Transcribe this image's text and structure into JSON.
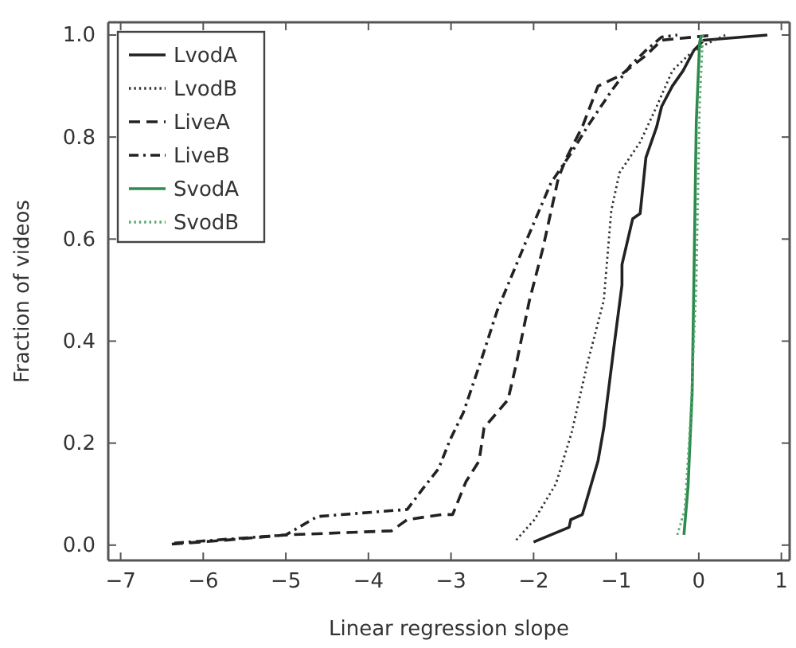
{
  "chart_data": {
    "type": "line",
    "xlabel": "Linear regression slope",
    "ylabel": "Fraction of videos",
    "xlim": [
      -7.15,
      1.1
    ],
    "ylim": [
      -0.03,
      1.025
    ],
    "xticks": [
      {
        "value": -7,
        "label": "−7"
      },
      {
        "value": -6,
        "label": "−6"
      },
      {
        "value": -5,
        "label": "−5"
      },
      {
        "value": -4,
        "label": "−4"
      },
      {
        "value": -3,
        "label": "−3"
      },
      {
        "value": -2,
        "label": "−2"
      },
      {
        "value": -1,
        "label": "−1"
      },
      0,
      1
    ],
    "yticks": [
      {
        "value": 0,
        "label": "0.0"
      },
      {
        "value": 0.2,
        "label": "0.2"
      },
      {
        "value": 0.4,
        "label": "0.4"
      },
      {
        "value": 0.6,
        "label": "0.6"
      },
      {
        "value": 0.8,
        "label": "0.8"
      },
      {
        "value": 1,
        "label": "1.0"
      }
    ],
    "grid": false,
    "legend": "top left",
    "marker": "none",
    "series": [
      {
        "name": "LvodA",
        "color": "#222222",
        "line_style": "solid",
        "x": [
          -2.0,
          -1.57,
          -1.55,
          -1.41,
          -1.36,
          -1.22,
          -1.15,
          -1.03,
          -0.93,
          -0.93,
          -0.8,
          -0.71,
          -0.64,
          -0.51,
          -0.45,
          -0.32,
          -0.19,
          -0.06,
          0.06,
          0.83
        ],
        "values": [
          0.006,
          0.035,
          0.05,
          0.06,
          0.087,
          0.165,
          0.23,
          0.385,
          0.51,
          0.55,
          0.64,
          0.65,
          0.76,
          0.82,
          0.86,
          0.9,
          0.93,
          0.97,
          0.99,
          1.0
        ]
      },
      {
        "name": "LvodB",
        "color": "#333333",
        "line_style": "dotted",
        "x": [
          -2.21,
          -1.99,
          -1.73,
          -1.54,
          -1.35,
          -1.15,
          -1.06,
          -0.96,
          -0.71,
          -0.51,
          -0.32,
          -0.13,
          0.06,
          0.32
        ],
        "values": [
          0.01,
          0.05,
          0.12,
          0.22,
          0.355,
          0.48,
          0.655,
          0.73,
          0.79,
          0.86,
          0.93,
          0.96,
          0.98,
          1.0
        ]
      },
      {
        "name": "LiveA",
        "color": "#222222",
        "line_style": "dashed",
        "x": [
          -6.38,
          -5.71,
          -5.0,
          -3.72,
          -3.53,
          -3.11,
          -2.98,
          -2.82,
          -2.66,
          -2.6,
          -2.31,
          -2.21,
          -2.05,
          -1.89,
          -1.7,
          -1.6,
          -1.41,
          -1.22,
          -0.96,
          -0.64,
          -0.45,
          0.19
        ],
        "values": [
          0.002,
          0.01,
          0.02,
          0.028,
          0.05,
          0.06,
          0.06,
          0.124,
          0.165,
          0.23,
          0.285,
          0.355,
          0.48,
          0.58,
          0.72,
          0.76,
          0.82,
          0.9,
          0.92,
          0.96,
          0.99,
          1.0
        ]
      },
      {
        "name": "LiveB",
        "color": "#222222",
        "line_style": "dashdot",
        "x": [
          -6.35,
          -5.0,
          -4.62,
          -3.53,
          -3.33,
          -3.15,
          -3.01,
          -2.85,
          -2.63,
          -2.44,
          -2.08,
          -1.79,
          -1.54,
          -1.35,
          -1.06,
          -0.83,
          -0.64,
          -0.45,
          -0.26
        ],
        "values": [
          0.004,
          0.02,
          0.056,
          0.07,
          0.113,
          0.15,
          0.207,
          0.26,
          0.365,
          0.46,
          0.6,
          0.71,
          0.77,
          0.82,
          0.89,
          0.94,
          0.97,
          0.996,
          1.0
        ]
      },
      {
        "name": "SvodA",
        "color": "#2e8b4e",
        "line_style": "solid",
        "x": [
          -0.18,
          -0.13,
          -0.08,
          -0.06,
          -0.03,
          0.01,
          0.03
        ],
        "values": [
          0.02,
          0.115,
          0.3,
          0.51,
          0.83,
          0.985,
          1.0
        ]
      },
      {
        "name": "SvodB",
        "color": "#4fa66a",
        "line_style": "dotted",
        "x": [
          -0.26,
          -0.17,
          -0.1,
          -0.03,
          0.01,
          0.05
        ],
        "values": [
          0.02,
          0.07,
          0.25,
          0.51,
          0.86,
          1.0
        ]
      }
    ]
  }
}
